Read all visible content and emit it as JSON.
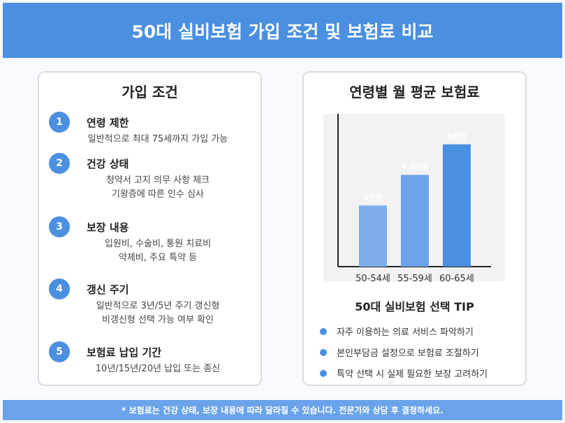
{
  "header": {
    "title": "50대 실비보험 가입 조건 및 보험료 비교"
  },
  "conditions": {
    "title": "가입 조건",
    "items": [
      {
        "num": "1",
        "title": "연령 제한",
        "lines": [
          "일반적으로 최대 75세까지 가입 가능"
        ]
      },
      {
        "num": "2",
        "title": "건강 상태",
        "lines": [
          "청약서 고지 의무 사항 체크",
          "기왕증에 따른 인수 심사"
        ]
      },
      {
        "num": "3",
        "title": "보장 내용",
        "lines": [
          "입원비, 수술비, 통원 치료비",
          "약제비, 주요 특약 등"
        ]
      },
      {
        "num": "4",
        "title": "갱신 주기",
        "lines": [
          "일반적으로 3년/5년 주기 갱신형",
          "비갱신형 선택 가능 여부 확인"
        ]
      },
      {
        "num": "5",
        "title": "보험료 납입 기간",
        "lines": [
          "10년/15년/20년 납입 또는 종신"
        ]
      }
    ]
  },
  "premium": {
    "title": "연령별 월 평균 보험료",
    "tips_title": "50대 실비보험 선택 TIP",
    "tips": [
      "자주 이용하는 의료 서비스 파악하기",
      "본인부담금 설정으로 보험료 조절하기",
      "특약 선택 시 실제 필요한 보장 고려하기"
    ]
  },
  "chart_data": {
    "type": "bar",
    "categories": [
      "50-54세",
      "55-59세",
      "60-65세"
    ],
    "values": [
      3,
      4.5,
      6
    ],
    "data_labels": [
      "3만원",
      "4.5만원",
      "6만원"
    ],
    "ylim": [
      0,
      7.5
    ],
    "grid": false,
    "colors": [
      "#7eaee8",
      "#6aa3ea",
      "#4a8fe0"
    ]
  },
  "footer": {
    "note": "* 보험료는 건강 상태, 보장 내용에 따라 달라질 수 있습니다. 전문가와 상담 후 결정하세요."
  }
}
